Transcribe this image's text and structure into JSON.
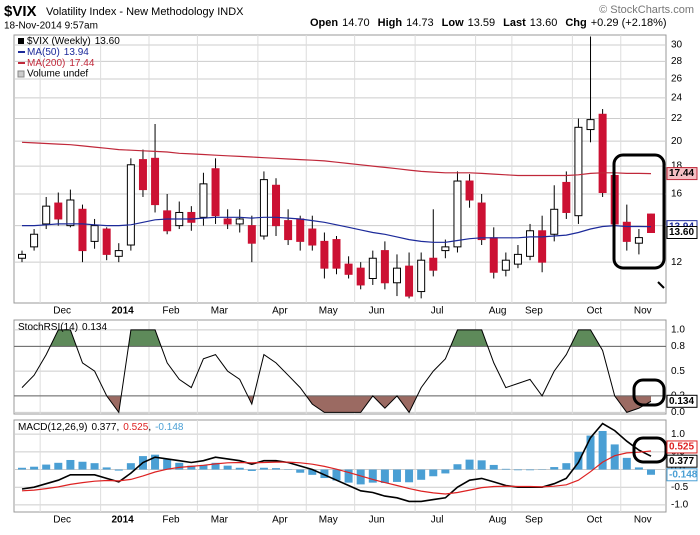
{
  "chart_data": [
    {
      "type": "candlestick",
      "title": "$VIX",
      "subtitle": "Volatility Index - New Methodology INDX",
      "date": "18-Nov-2014 9:57am",
      "quote": [
        {
          "label": "Open",
          "value": "14.70"
        },
        {
          "label": "High",
          "value": "14.73"
        },
        {
          "label": "Low",
          "value": "13.59"
        },
        {
          "label": "Last",
          "value": "13.60"
        },
        {
          "label": "Chg",
          "value": "+0.29 (+2.18%)"
        }
      ],
      "credit": "© StockCharts.com",
      "categories": [
        null,
        null,
        "Dec",
        null,
        null,
        null,
        null,
        "2014",
        null,
        null,
        null,
        "Feb",
        null,
        null,
        null,
        "Mar",
        null,
        null,
        null,
        null,
        "Apr",
        null,
        null,
        null,
        "May",
        null,
        null,
        null,
        "Jun",
        null,
        null,
        null,
        null,
        "Jul",
        null,
        null,
        null,
        null,
        "Aug",
        null,
        null,
        "Sep",
        null,
        null,
        null,
        null,
        "Oct",
        null,
        null,
        null,
        "Nov",
        null,
        null
      ],
      "series": [
        {
          "name": "$VIX (Weekly)",
          "up_color": "#ffffff",
          "down_color": "#cc1133",
          "open": [
            12.2,
            12.8,
            14.1,
            15.4,
            14.0,
            15.0,
            13.1,
            13.8,
            12.3,
            12.9,
            18.5,
            18.6,
            14.9,
            14.0,
            14.8,
            14.5,
            17.8,
            14.4,
            14.1,
            14.0,
            13.4,
            16.6,
            14.3,
            14.4,
            13.8,
            13.1,
            13.2,
            11.9,
            11.7,
            11.2,
            12.6,
            11.0,
            11.8,
            10.6,
            12.2,
            12.6,
            12.8,
            16.9,
            15.4,
            13.3,
            11.6,
            11.9,
            12.3,
            13.7,
            13.5,
            16.8,
            14.6,
            21.0,
            22.4,
            17.3,
            14.2,
            13.0,
            14.7
          ],
          "high": [
            12.6,
            13.8,
            15.8,
            16.1,
            16.3,
            15.3,
            14.4,
            13.9,
            13.0,
            18.6,
            19.3,
            21.5,
            16.0,
            15.5,
            15.2,
            17.5,
            18.6,
            15.0,
            15.0,
            14.6,
            17.6,
            17.1,
            15.0,
            14.6,
            14.6,
            13.6,
            13.4,
            12.3,
            12.0,
            12.6,
            13.1,
            12.4,
            12.5,
            12.5,
            15.0,
            13.2,
            17.6,
            17.4,
            16.0,
            13.9,
            12.5,
            12.9,
            14.1,
            14.6,
            16.6,
            17.6,
            22.0,
            31.1,
            22.9,
            17.4,
            15.3,
            13.8,
            14.73
          ],
          "low": [
            12.0,
            12.6,
            13.8,
            14.0,
            13.9,
            12.0,
            12.7,
            12.1,
            12.0,
            12.6,
            15.8,
            14.8,
            13.5,
            13.8,
            13.7,
            14.0,
            14.1,
            13.8,
            13.6,
            12.0,
            13.2,
            13.4,
            12.9,
            12.6,
            12.6,
            11.2,
            11.4,
            11.2,
            10.7,
            10.9,
            10.7,
            10.4,
            10.3,
            10.3,
            11.3,
            12.2,
            12.5,
            15.1,
            12.9,
            11.2,
            11.3,
            11.7,
            12.1,
            11.5,
            13.1,
            14.4,
            14.1,
            19.9,
            15.8,
            13.4,
            12.6,
            12.4,
            13.59
          ],
          "close": [
            12.4,
            13.5,
            15.2,
            14.4,
            15.6,
            12.6,
            14.0,
            12.4,
            12.6,
            18.1,
            16.3,
            15.3,
            13.7,
            14.8,
            14.2,
            16.7,
            14.6,
            14.1,
            14.4,
            13.0,
            17.0,
            14.0,
            13.2,
            13.1,
            12.9,
            11.7,
            11.7,
            11.4,
            10.9,
            12.2,
            11.0,
            11.7,
            10.4,
            12.1,
            11.6,
            12.8,
            16.9,
            15.6,
            13.2,
            11.5,
            12.1,
            12.4,
            13.7,
            12.0,
            15.0,
            14.8,
            21.2,
            21.9,
            16.1,
            14.1,
            13.1,
            13.31,
            13.6
          ]
        }
      ],
      "overlays": [
        {
          "name": "MA(50)",
          "color": "#1c2a9a",
          "values": [
            14.0,
            14.0,
            14.05,
            14.1,
            14.1,
            14.1,
            14.05,
            14.0,
            14.0,
            14.05,
            14.2,
            14.35,
            14.4,
            14.4,
            14.4,
            14.45,
            14.5,
            14.5,
            14.5,
            14.45,
            14.5,
            14.5,
            14.45,
            14.4,
            14.3,
            14.2,
            14.05,
            13.9,
            13.75,
            13.6,
            13.5,
            13.35,
            13.2,
            13.1,
            13.05,
            13.05,
            13.15,
            13.25,
            13.3,
            13.3,
            13.3,
            13.3,
            13.35,
            13.35,
            13.4,
            13.45,
            13.6,
            13.8,
            13.95,
            14.0,
            13.95,
            13.95,
            13.94
          ]
        },
        {
          "name": "MA(200)",
          "color": "#c0283a",
          "values": [
            19.9,
            19.85,
            19.8,
            19.75,
            19.7,
            19.6,
            19.5,
            19.4,
            19.3,
            19.25,
            19.2,
            19.15,
            19.1,
            19.0,
            18.95,
            18.9,
            18.85,
            18.8,
            18.75,
            18.7,
            18.65,
            18.6,
            18.55,
            18.5,
            18.45,
            18.4,
            18.3,
            18.2,
            18.1,
            18.0,
            17.9,
            17.8,
            17.7,
            17.6,
            17.55,
            17.5,
            17.5,
            17.5,
            17.45,
            17.4,
            17.35,
            17.3,
            17.3,
            17.3,
            17.3,
            17.3,
            17.35,
            17.45,
            17.5,
            17.5,
            17.45,
            17.45,
            17.44
          ]
        }
      ],
      "volume_label": "Volume undef",
      "ylim": [
        10.1,
        31.3
      ],
      "log": true,
      "grid": true,
      "yticks": [
        12,
        14,
        16,
        18,
        20,
        22,
        24,
        26,
        28,
        30
      ]
    },
    {
      "type": "stochrsi",
      "name": "StochRSI(14)",
      "color": "#000000",
      "values": [
        0.3,
        0.45,
        0.7,
        1,
        1,
        0.6,
        0.5,
        0.2,
        0,
        1,
        1,
        1,
        0.6,
        0.4,
        0.3,
        0.65,
        0.7,
        0.5,
        0.4,
        0.1,
        0.7,
        0.6,
        0.45,
        0.3,
        0.1,
        0,
        0,
        0,
        0,
        0.2,
        0.05,
        0.2,
        0,
        0.3,
        0.5,
        0.65,
        1,
        1,
        1,
        0.6,
        0.3,
        0.35,
        0.4,
        0.2,
        0.5,
        0.7,
        1,
        1,
        0.75,
        0.2,
        0,
        0.05,
        0.134
      ],
      "overbought": 0.8,
      "oversold": 0.2,
      "overbought_color": "#5e8a5a",
      "oversold_color": "#9b6a62",
      "ylim": [
        -0.02,
        1.12
      ],
      "grid": true,
      "yticks": [
        {
          "value": 1,
          "label": "1.0"
        },
        0.8,
        0.5,
        0.2,
        {
          "value": 0,
          "label": "0.0"
        }
      ]
    },
    {
      "type": "macd",
      "name": "MACD(12,26,9)",
      "legend_separator": ",",
      "series": [
        {
          "color": "#000000",
          "values": [
            -0.55,
            -0.5,
            -0.4,
            -0.3,
            -0.15,
            -0.15,
            -0.15,
            -0.25,
            -0.35,
            -0.1,
            0.2,
            0.35,
            0.3,
            0.25,
            0.2,
            0.25,
            0.35,
            0.3,
            0.25,
            0.15,
            0.25,
            0.25,
            0.2,
            0.1,
            0.0,
            -0.15,
            -0.3,
            -0.45,
            -0.6,
            -0.65,
            -0.75,
            -0.8,
            -0.9,
            -0.9,
            -0.85,
            -0.8,
            -0.5,
            -0.3,
            -0.25,
            -0.35,
            -0.45,
            -0.5,
            -0.5,
            -0.5,
            -0.4,
            -0.25,
            0.2,
            0.9,
            1.3,
            1.1,
            0.8,
            0.55,
            0.377
          ]
        },
        {
          "color": "#dd2222",
          "values": [
            -0.6,
            -0.58,
            -0.54,
            -0.49,
            -0.42,
            -0.37,
            -0.33,
            -0.31,
            -0.32,
            -0.28,
            -0.18,
            -0.07,
            0.01,
            0.06,
            0.09,
            0.12,
            0.16,
            0.19,
            0.2,
            0.19,
            0.2,
            0.21,
            0.21,
            0.19,
            0.15,
            0.09,
            0.01,
            -0.08,
            -0.18,
            -0.28,
            -0.37,
            -0.45,
            -0.54,
            -0.61,
            -0.66,
            -0.69,
            -0.65,
            -0.58,
            -0.51,
            -0.48,
            -0.47,
            -0.48,
            -0.48,
            -0.49,
            -0.47,
            -0.43,
            -0.3,
            -0.06,
            0.21,
            0.39,
            0.47,
            0.49,
            0.525
          ]
        },
        {
          "color": "#4a9fd4",
          "bars": true,
          "values": [
            0.05,
            0.08,
            0.14,
            0.19,
            0.27,
            0.22,
            0.18,
            0.06,
            -0.03,
            0.18,
            0.38,
            0.42,
            0.29,
            0.19,
            0.11,
            0.13,
            0.19,
            0.11,
            0.05,
            -0.04,
            0.05,
            0.04,
            -0.01,
            -0.09,
            -0.15,
            -0.24,
            -0.31,
            -0.37,
            -0.42,
            -0.37,
            -0.38,
            -0.35,
            -0.36,
            -0.29,
            -0.19,
            -0.11,
            0.15,
            0.28,
            0.26,
            0.13,
            0.02,
            -0.02,
            -0.02,
            -0.01,
            0.07,
            0.18,
            0.5,
            0.96,
            1.09,
            0.71,
            0.33,
            0.06,
            -0.148
          ]
        }
      ],
      "ylim": [
        -1.2,
        1.4
      ],
      "grid": true,
      "yticks": [
        {
          "value": 1,
          "label": "1.0"
        },
        0.5,
        {
          "value": 0,
          "label": "0.0"
        },
        -0.5,
        {
          "value": -1,
          "label": "-1.0"
        }
      ]
    }
  ]
}
